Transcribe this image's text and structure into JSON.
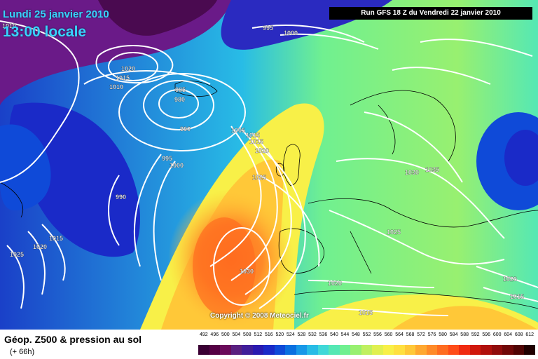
{
  "header": {
    "date": "Lundi 25 janvier 2010",
    "time": "13:00 locale",
    "run": "Run GFS 18 Z du Vendredi 22 janvier 2010"
  },
  "copyright": "Copyright © 2008 Meteociel.fr",
  "footer": {
    "title": "Géop. Z500 & pression au sol",
    "subtitle": "(+ 66h)"
  },
  "legend": {
    "labels": [
      "492",
      "496",
      "500",
      "504",
      "508",
      "512",
      "516",
      "520",
      "524",
      "528",
      "532",
      "536",
      "540",
      "544",
      "548",
      "552",
      "556",
      "560",
      "564",
      "568",
      "572",
      "576",
      "580",
      "584",
      "588",
      "592",
      "596",
      "600",
      "604",
      "608",
      "612"
    ],
    "colors": [
      "#3a0033",
      "#550044",
      "#6a0a5a",
      "#5a2080",
      "#401e9a",
      "#2a1ab0",
      "#1a2ac8",
      "#0f4ad8",
      "#0a70e0",
      "#1898e8",
      "#28bce6",
      "#40d8d8",
      "#55e8b4",
      "#70f090",
      "#98f070",
      "#c0f060",
      "#e0f050",
      "#f8f048",
      "#ffe040",
      "#ffc838",
      "#ffa830",
      "#ff8a28",
      "#ff6c20",
      "#ff4c18",
      "#f02a10",
      "#d0180c",
      "#b0100c",
      "#900c0c",
      "#700808",
      "#500404",
      "#200000"
    ]
  },
  "isobars": [
    {
      "label": "1010",
      "pos": "left-top"
    },
    {
      "label": "995",
      "pos": "top-centre"
    },
    {
      "label": "1000",
      "pos": "top-centre"
    },
    {
      "label": "1020",
      "pos": "iceland-high"
    },
    {
      "label": "1015",
      "pos": "iceland-high"
    },
    {
      "label": "1010",
      "pos": "iceland-high"
    },
    {
      "label": "985",
      "pos": "low-centre"
    },
    {
      "label": "980",
      "pos": "low-centre"
    },
    {
      "label": "990",
      "pos": "low-ring"
    },
    {
      "label": "1005",
      "pos": "scotland"
    },
    {
      "label": "1015",
      "pos": "scotland"
    },
    {
      "label": "1015",
      "pos": "scotland"
    },
    {
      "label": "1020",
      "pos": "scotland"
    },
    {
      "label": "995",
      "pos": "atlantic"
    },
    {
      "label": "1000",
      "pos": "atlantic"
    },
    {
      "label": "1025",
      "pos": "ireland"
    },
    {
      "label": "990",
      "pos": "atlantic-low"
    },
    {
      "label": "1030",
      "pos": "central-europe"
    },
    {
      "label": "1035",
      "pos": "central-europe"
    },
    {
      "label": "1025",
      "pos": "balkans"
    },
    {
      "label": "1030",
      "pos": "azores-high"
    },
    {
      "label": "1020",
      "pos": "mediterranean"
    },
    {
      "label": "1015",
      "pos": "north-africa"
    },
    {
      "label": "1015",
      "pos": "west-atlantic"
    },
    {
      "label": "1020",
      "pos": "west-atlantic"
    },
    {
      "label": "1025",
      "pos": "west-atlantic"
    },
    {
      "label": "1020",
      "pos": "east-mediterranean"
    },
    {
      "label": "1015",
      "pos": "east-mediterranean"
    }
  ]
}
